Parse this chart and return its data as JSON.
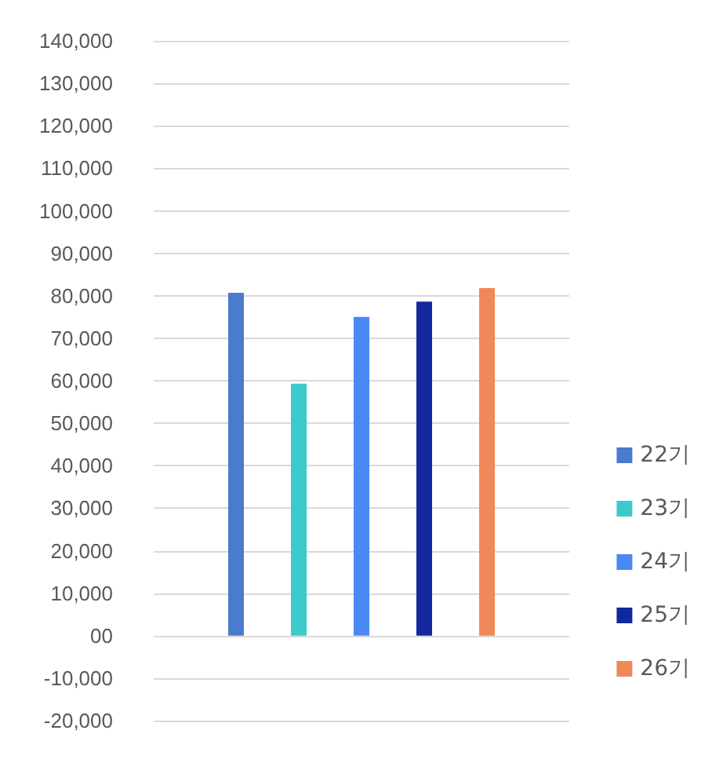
{
  "chart_data": {
    "type": "bar",
    "categories": [
      null
    ],
    "series": [
      {
        "name": "22기",
        "color": "#4a7bcd",
        "values": [
          80700
        ]
      },
      {
        "name": "23기",
        "color": "#3ccaca",
        "values": [
          59300
        ]
      },
      {
        "name": "24기",
        "color": "#4a88f5",
        "values": [
          75000
        ]
      },
      {
        "name": "25기",
        "color": "#13289e",
        "values": [
          78600
        ]
      },
      {
        "name": "26기",
        "color": "#f0885a",
        "values": [
          81800
        ]
      }
    ],
    "ylim": [
      -20000,
      140000
    ],
    "yticks": [
      {
        "value": -20000,
        "label": "-20,000"
      },
      {
        "value": -10000,
        "label": "-10,000"
      },
      {
        "value": 0,
        "label": "00"
      },
      {
        "value": 10000,
        "label": "10,000"
      },
      {
        "value": 20000,
        "label": "20,000"
      },
      {
        "value": 30000,
        "label": "30,000"
      },
      {
        "value": 40000,
        "label": "40,000"
      },
      {
        "value": 50000,
        "label": "50,000"
      },
      {
        "value": 60000,
        "label": "60,000"
      },
      {
        "value": 70000,
        "label": "70,000"
      },
      {
        "value": 80000,
        "label": "80,000"
      },
      {
        "value": 90000,
        "label": "90,000"
      },
      {
        "value": 100000,
        "label": "100,000"
      },
      {
        "value": 110000,
        "label": "110,000"
      },
      {
        "value": 120000,
        "label": "120,000"
      },
      {
        "value": 130000,
        "label": "130,000"
      },
      {
        "value": 140000,
        "label": "140,000"
      }
    ],
    "grid": "y",
    "legend": "bottom right"
  }
}
